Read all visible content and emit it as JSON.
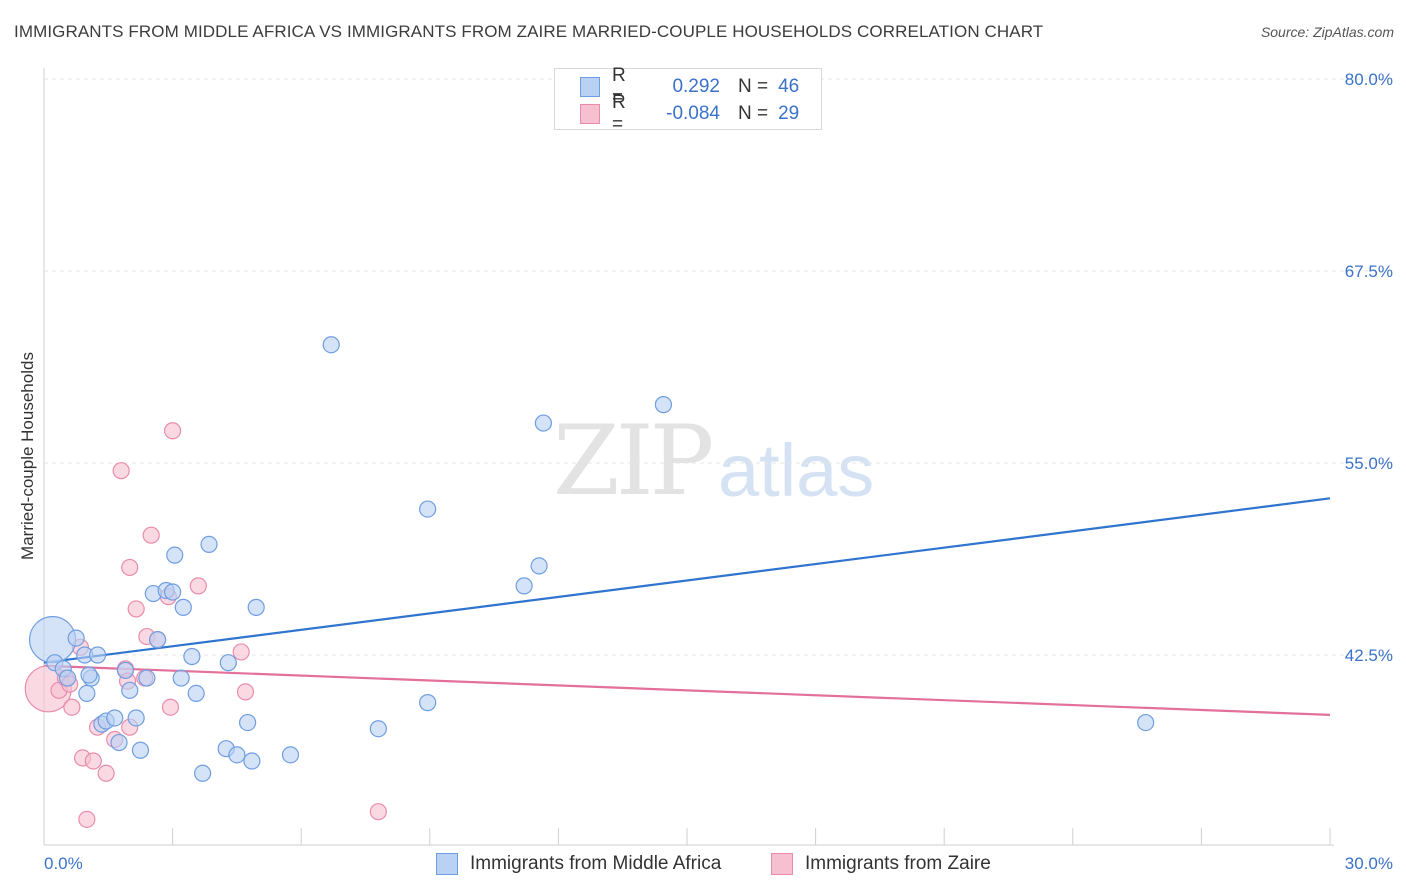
{
  "header": {
    "title": "IMMIGRANTS FROM MIDDLE AFRICA VS IMMIGRANTS FROM ZAIRE MARRIED-COUPLE HOUSEHOLDS CORRELATION CHART",
    "source": "Source: ZipAtlas.com"
  },
  "watermark": {
    "zip": "ZIP",
    "atlas": "atlas"
  },
  "legend_top": {
    "rows": [
      {
        "r_label": "R =",
        "r_value": "0.292",
        "n_label": "N =",
        "n_value": "46"
      },
      {
        "r_label": "R =",
        "r_value": "-0.084",
        "n_label": "N =",
        "n_value": "29"
      }
    ]
  },
  "legend_bottom": {
    "series1": "Immigrants from Middle Africa",
    "series2": "Immigrants from Zaire"
  },
  "colors": {
    "blue_fill": "#b9d1f3",
    "blue_stroke": "#6f9ee0",
    "blue_line": "#2f74cf",
    "pink_fill": "#f6c0d1",
    "pink_stroke": "#e98cac",
    "pink_line": "#e2709a",
    "axis_text": "#3b72c9"
  },
  "chart_data": {
    "type": "scatter",
    "title": "IMMIGRANTS FROM MIDDLE AFRICA VS IMMIGRANTS FROM ZAIRE MARRIED-COUPLE HOUSEHOLDS CORRELATION CHART",
    "xlabel": "",
    "ylabel": "Married-couple Households",
    "xlim": [
      0,
      30
    ],
    "ylim": [
      30,
      82
    ],
    "x_tick_labels": [
      "0.0%",
      "30.0%"
    ],
    "y_ticks": [
      42.5,
      55.0,
      67.5,
      80.0
    ],
    "y_tick_labels": [
      "42.5%",
      "55.0%",
      "67.5%",
      "80.0%"
    ],
    "grid": true,
    "series": [
      {
        "name": "Immigrants from Middle Africa",
        "color": "blue",
        "R": 0.292,
        "N": 46,
        "trend": {
          "x": [
            0,
            30
          ],
          "y": [
            42.0,
            52.7
          ]
        },
        "points": [
          {
            "x": 0.2,
            "y": 43.5,
            "big": true
          },
          {
            "x": 0.25,
            "y": 42.0
          },
          {
            "x": 0.45,
            "y": 41.6
          },
          {
            "x": 0.55,
            "y": 41.0
          },
          {
            "x": 0.75,
            "y": 43.6
          },
          {
            "x": 0.95,
            "y": 42.5
          },
          {
            "x": 1.0,
            "y": 40.0
          },
          {
            "x": 1.1,
            "y": 41.0
          },
          {
            "x": 1.25,
            "y": 42.5
          },
          {
            "x": 1.35,
            "y": 38.0
          },
          {
            "x": 1.45,
            "y": 38.2
          },
          {
            "x": 1.65,
            "y": 38.4
          },
          {
            "x": 1.75,
            "y": 36.8
          },
          {
            "x": 1.9,
            "y": 41.5
          },
          {
            "x": 2.0,
            "y": 40.2
          },
          {
            "x": 2.15,
            "y": 38.4
          },
          {
            "x": 2.25,
            "y": 36.3
          },
          {
            "x": 2.4,
            "y": 41.0
          },
          {
            "x": 2.55,
            "y": 46.5
          },
          {
            "x": 2.65,
            "y": 43.5
          },
          {
            "x": 2.85,
            "y": 46.7
          },
          {
            "x": 3.0,
            "y": 46.6
          },
          {
            "x": 3.05,
            "y": 49.0
          },
          {
            "x": 3.2,
            "y": 41.0
          },
          {
            "x": 3.25,
            "y": 45.6
          },
          {
            "x": 3.45,
            "y": 42.4
          },
          {
            "x": 3.55,
            "y": 40.0
          },
          {
            "x": 3.7,
            "y": 34.8
          },
          {
            "x": 3.85,
            "y": 49.7
          },
          {
            "x": 4.25,
            "y": 36.4
          },
          {
            "x": 4.3,
            "y": 42.0
          },
          {
            "x": 4.5,
            "y": 36.0
          },
          {
            "x": 4.75,
            "y": 38.1
          },
          {
            "x": 4.85,
            "y": 35.6
          },
          {
            "x": 4.95,
            "y": 45.6
          },
          {
            "x": 5.75,
            "y": 36.0
          },
          {
            "x": 6.7,
            "y": 62.7
          },
          {
            "x": 7.8,
            "y": 37.7
          },
          {
            "x": 8.95,
            "y": 52.0
          },
          {
            "x": 8.95,
            "y": 39.4
          },
          {
            "x": 11.2,
            "y": 47.0
          },
          {
            "x": 11.55,
            "y": 48.3
          },
          {
            "x": 11.65,
            "y": 57.6
          },
          {
            "x": 14.45,
            "y": 58.8
          },
          {
            "x": 1.05,
            "y": 41.2
          },
          {
            "x": 25.7,
            "y": 38.1
          }
        ]
      },
      {
        "name": "Immigrants from Zaire",
        "color": "pink",
        "R": -0.084,
        "N": 29,
        "trend": {
          "x": [
            0,
            30
          ],
          "y": [
            41.8,
            38.6
          ]
        },
        "points": [
          {
            "x": 0.1,
            "y": 40.3,
            "big": true
          },
          {
            "x": 0.35,
            "y": 40.2
          },
          {
            "x": 0.5,
            "y": 41.0
          },
          {
            "x": 0.6,
            "y": 40.6
          },
          {
            "x": 0.65,
            "y": 39.1
          },
          {
            "x": 0.85,
            "y": 43.0
          },
          {
            "x": 0.9,
            "y": 35.8
          },
          {
            "x": 1.0,
            "y": 31.8
          },
          {
            "x": 1.15,
            "y": 35.6
          },
          {
            "x": 1.25,
            "y": 37.8
          },
          {
            "x": 1.45,
            "y": 34.8
          },
          {
            "x": 1.65,
            "y": 37.0
          },
          {
            "x": 1.8,
            "y": 54.5
          },
          {
            "x": 1.9,
            "y": 41.6
          },
          {
            "x": 1.95,
            "y": 40.8
          },
          {
            "x": 2.0,
            "y": 37.8
          },
          {
            "x": 2.0,
            "y": 48.2
          },
          {
            "x": 2.15,
            "y": 45.5
          },
          {
            "x": 2.35,
            "y": 41.0
          },
          {
            "x": 2.4,
            "y": 43.7
          },
          {
            "x": 2.5,
            "y": 50.3
          },
          {
            "x": 2.65,
            "y": 43.5
          },
          {
            "x": 2.9,
            "y": 46.3
          },
          {
            "x": 2.95,
            "y": 39.1
          },
          {
            "x": 3.0,
            "y": 57.1
          },
          {
            "x": 3.6,
            "y": 47.0
          },
          {
            "x": 4.6,
            "y": 42.7
          },
          {
            "x": 4.7,
            "y": 40.1
          },
          {
            "x": 7.8,
            "y": 32.3
          }
        ]
      }
    ]
  }
}
